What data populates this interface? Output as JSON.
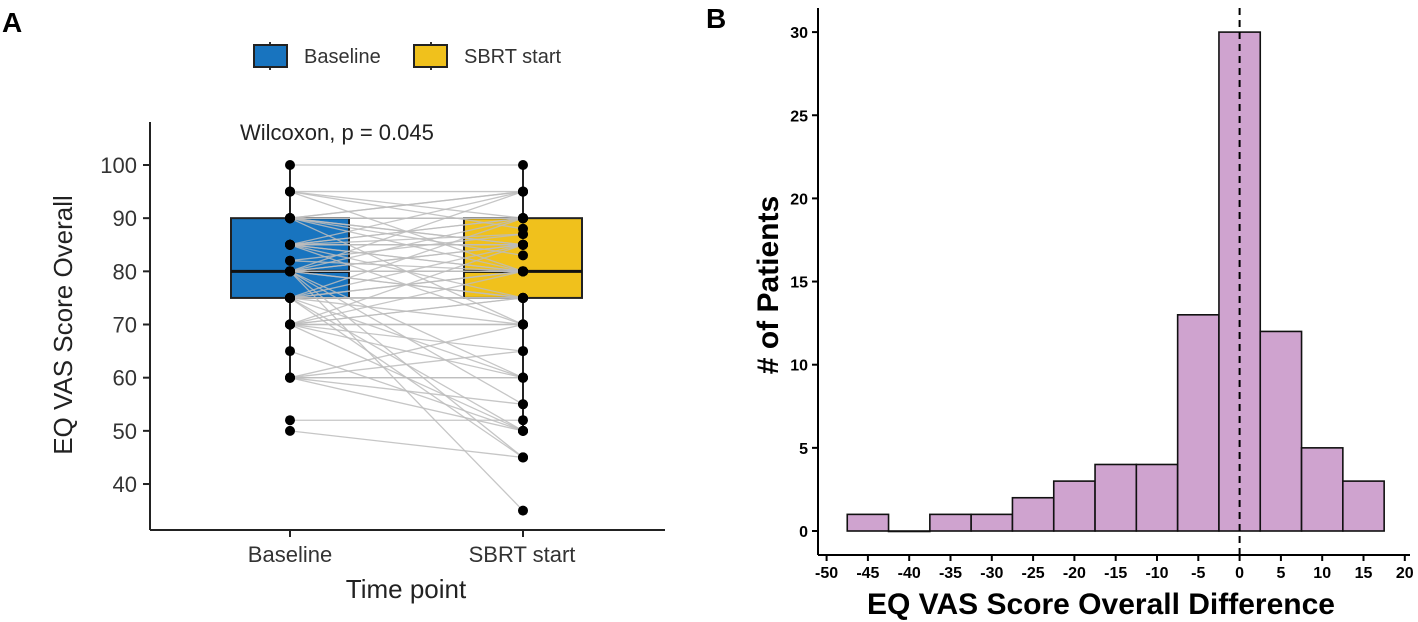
{
  "chart_data": [
    {
      "panel": "A",
      "type": "box",
      "xlabel": "Time point",
      "ylabel": "EQ VAS Score Overall",
      "categories": [
        "Baseline",
        "SBRT start"
      ],
      "legend": {
        "placement": "top",
        "entries": [
          "Baseline",
          "SBRT start"
        ]
      },
      "annotation": "Wilcoxon, p = 0.045",
      "ylim": [
        31,
        108
      ],
      "yticks": [
        40,
        50,
        60,
        70,
        80,
        90,
        100
      ],
      "colors": {
        "Baseline": "#1874bf",
        "SBRT start": "#f0c11c",
        "lines": "#bdbdbd"
      },
      "boxes": [
        {
          "name": "Baseline",
          "whisker_low": 60,
          "q1": 75,
          "median": 80,
          "q3": 90,
          "whisker_high": 100
        },
        {
          "name": "SBRT start",
          "whisker_low": 50,
          "q1": 75,
          "median": 80,
          "q3": 90,
          "whisker_high": 100
        }
      ],
      "pairs": [
        [
          80,
          35
        ],
        [
          80,
          45
        ],
        [
          75,
          45
        ],
        [
          75,
          50
        ],
        [
          80,
          55
        ],
        [
          70,
          50
        ],
        [
          80,
          60
        ],
        [
          90,
          70
        ],
        [
          65,
          50
        ],
        [
          75,
          60
        ],
        [
          85,
          70
        ],
        [
          95,
          80
        ],
        [
          60,
          50
        ],
        [
          70,
          60
        ],
        [
          90,
          80
        ],
        [
          85,
          75
        ],
        [
          95,
          90
        ],
        [
          90,
          85
        ],
        [
          85,
          80
        ],
        [
          80,
          75
        ],
        [
          75,
          70
        ],
        [
          70,
          65
        ],
        [
          60,
          55
        ],
        [
          90,
          85
        ],
        [
          85,
          80
        ],
        [
          80,
          75
        ],
        [
          95,
          88
        ],
        [
          90,
          83
        ],
        [
          50,
          45
        ],
        [
          100,
          100
        ],
        [
          95,
          95
        ],
        [
          90,
          90
        ],
        [
          90,
          90
        ],
        [
          90,
          90
        ],
        [
          90,
          90
        ],
        [
          90,
          90
        ],
        [
          90,
          90
        ],
        [
          85,
          85
        ],
        [
          85,
          85
        ],
        [
          85,
          85
        ],
        [
          80,
          80
        ],
        [
          80,
          80
        ],
        [
          80,
          80
        ],
        [
          80,
          80
        ],
        [
          80,
          80
        ],
        [
          80,
          80
        ],
        [
          75,
          75
        ],
        [
          75,
          75
        ],
        [
          75,
          75
        ],
        [
          75,
          75
        ],
        [
          75,
          75
        ],
        [
          70,
          70
        ],
        [
          70,
          70
        ],
        [
          70,
          70
        ],
        [
          70,
          70
        ],
        [
          60,
          60
        ],
        [
          60,
          60
        ],
        [
          52,
          52
        ],
        [
          82,
          80
        ],
        [
          85,
          87
        ],
        [
          90,
          95
        ],
        [
          85,
          90
        ],
        [
          80,
          85
        ],
        [
          75,
          80
        ],
        [
          70,
          75
        ],
        [
          60,
          65
        ],
        [
          80,
          85
        ],
        [
          85,
          90
        ],
        [
          75,
          80
        ],
        [
          70,
          75
        ],
        [
          90,
          95
        ],
        [
          82,
          87
        ],
        [
          85,
          95
        ],
        [
          80,
          90
        ],
        [
          75,
          85
        ],
        [
          70,
          80
        ],
        [
          60,
          70
        ],
        [
          80,
          95
        ],
        [
          75,
          90
        ],
        [
          70,
          85
        ]
      ]
    },
    {
      "panel": "B",
      "type": "bar",
      "xlabel": "EQ VAS Score Overall Difference",
      "ylabel": "# of Patients",
      "bin_centers": [
        -45,
        -40,
        -35,
        -30,
        -25,
        -20,
        -15,
        -10,
        -5,
        0,
        5,
        10,
        15
      ],
      "bin_width": 5,
      "values": [
        1,
        0,
        1,
        1,
        2,
        3,
        4,
        4,
        13,
        30,
        12,
        5,
        3
      ],
      "xlim": [
        -50,
        20
      ],
      "ylim": [
        -1.5,
        31.5
      ],
      "xticks": [
        -50,
        -45,
        -40,
        -35,
        -30,
        -25,
        -20,
        -15,
        -10,
        -5,
        0,
        5,
        10,
        15,
        20
      ],
      "yticks": [
        0,
        5,
        10,
        15,
        20,
        25,
        30
      ],
      "reference_line": 0,
      "colors": {
        "fill": "#cfa3cf"
      }
    }
  ],
  "panel_labels": [
    "A",
    "B"
  ]
}
